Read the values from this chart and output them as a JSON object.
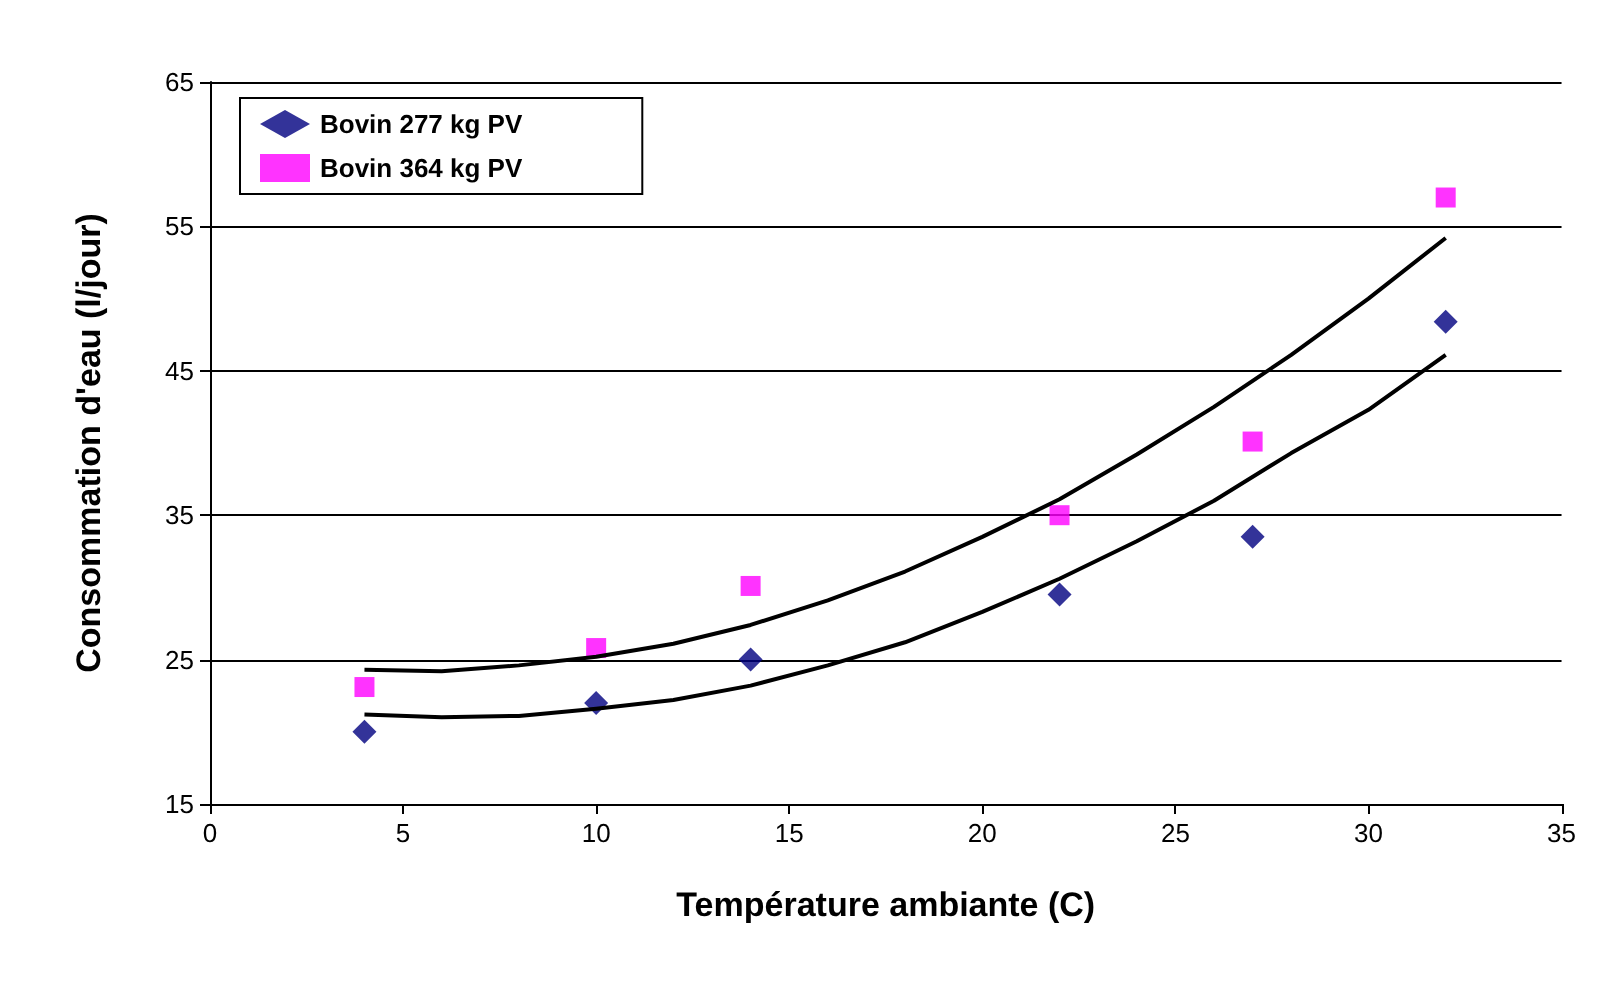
{
  "chart_data": {
    "type": "scatter",
    "xlabel": "Température ambiante (C)",
    "ylabel": "Consommation d'eau (l/jour)",
    "x": [
      4,
      10,
      14,
      22,
      27,
      32
    ],
    "series": [
      {
        "name": "Bovin 277 kg PV",
        "color": "#000080",
        "marker": "diamond",
        "values": [
          20,
          22,
          25,
          29.5,
          33.5,
          48.4
        ]
      },
      {
        "name": "Bovin 364 kg PV",
        "color": "#ff00ff",
        "marker": "square",
        "values": [
          23.1,
          25.8,
          30.1,
          35,
          40.1,
          57
        ]
      },
      {
        "type": "line",
        "color": "#000000",
        "marker": "none",
        "x": [
          4,
          6,
          8,
          10,
          12,
          14,
          16,
          18,
          20,
          22,
          24,
          26,
          28,
          30,
          32
        ],
        "values": [
          21.2,
          21,
          21.1,
          21.6,
          22.2,
          23.2,
          24.6,
          26.2,
          28.3,
          30.6,
          33.2,
          36,
          39.3,
          42.3,
          46.1
        ]
      },
      {
        "type": "line",
        "color": "#000000",
        "marker": "none",
        "x": [
          4,
          6,
          8,
          10,
          12,
          14,
          16,
          18,
          20,
          22,
          24,
          26,
          28,
          30,
          32
        ],
        "values": [
          24.3,
          24.2,
          24.6,
          25.2,
          26.1,
          27.4,
          29.1,
          31.1,
          33.5,
          36.1,
          39.2,
          42.5,
          46.1,
          50,
          54.2
        ]
      }
    ],
    "xlim": [
      0,
      35
    ],
    "xticks": [
      0,
      5,
      10,
      15,
      20,
      25,
      30,
      35
    ],
    "ylim": [
      15,
      65
    ],
    "yticks": [
      15,
      25,
      35,
      45,
      55,
      65
    ],
    "grid": "y",
    "legend": "top left"
  }
}
